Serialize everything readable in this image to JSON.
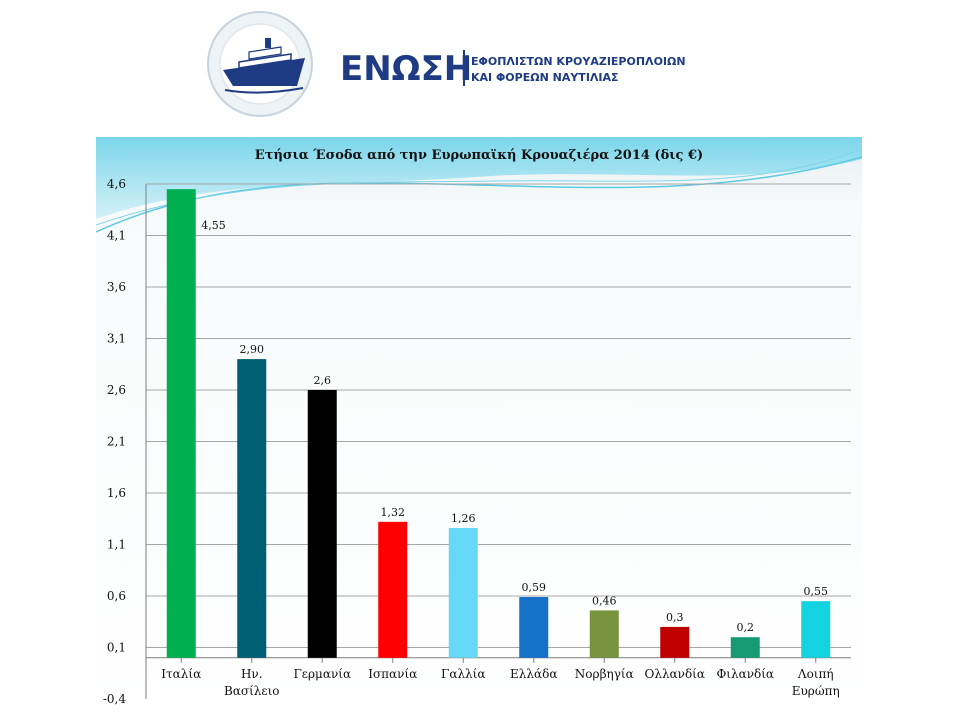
{
  "logo": {
    "name": "ΕΝΩΣΗ",
    "line1": "ΕΦΟΠΛΙΣΤΩΝ ΚΡΟΥΑΖΙΕΡΟΠΛΟΙΩΝ",
    "line2": "ΚΑΙ ΦΟΡΕΩΝ ΝΑΥΤΙΛΙΑΣ",
    "icon": "cruise-ship-emblem",
    "color": "#1f3b83"
  },
  "chart_data": {
    "type": "bar",
    "title": "Ετήσια Έσοδα από την Ευρωπαϊκή Κρουαζιέρα 2014 (δις €)",
    "xlabel": "",
    "ylabel": "",
    "categories": [
      "Ιταλία",
      "Ην. Βασίλειο",
      "Γερμανία",
      "Ισπανία",
      "Γαλλία",
      "Ελλάδα",
      "Νορβηγία",
      "Ολλανδία",
      "Φιλανδία",
      "Λοιπή Ευρώπη"
    ],
    "values": [
      4.55,
      2.9,
      2.6,
      1.32,
      1.26,
      0.59,
      0.46,
      0.3,
      0.2,
      0.55
    ],
    "data_labels": [
      "4,55",
      "2,90",
      "2,6",
      "1,32",
      "1,26",
      "0,59",
      "0,46",
      "0,3",
      "0,2",
      "0,55"
    ],
    "colors": [
      "#00b050",
      "#005f73",
      "#000000",
      "#ff0000",
      "#66d9f8",
      "#1570c8",
      "#77933c",
      "#c00000",
      "#159a74",
      "#14d3e0"
    ],
    "yticks": [
      "4,6",
      "4,1",
      "3,6",
      "3,1",
      "2,6",
      "2,1",
      "1,6",
      "1,1",
      "0,6",
      "0,1",
      "-0,4"
    ],
    "ylim": [
      -0.4,
      4.6
    ],
    "grid": true,
    "legend": "none"
  }
}
